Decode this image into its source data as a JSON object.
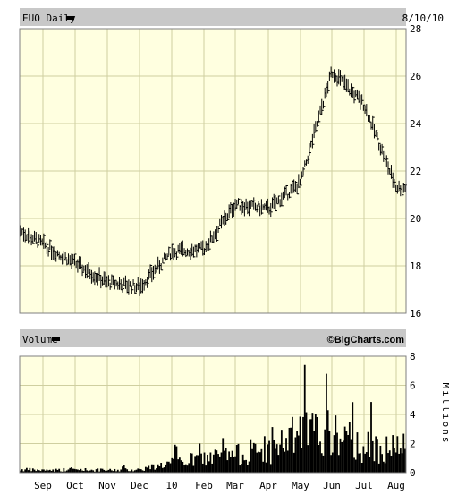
{
  "header": {
    "symbol_label": "EUO Daily",
    "date_label": "8/10/10",
    "volume_label": "Volume",
    "watermark": "©BigCharts.com"
  },
  "colors": {
    "panel_bg": "#ffffe0",
    "header_bg": "#c8c8c8",
    "grid": "#cfcfa0",
    "price_bar": "#000000",
    "volume_bar": "#000000"
  },
  "chart_data": [
    {
      "type": "line",
      "title": "EUO Daily",
      "subtitle": "8/10/10",
      "xlabel": "",
      "ylabel": "",
      "x_tick_labels": [
        "Sep",
        "Oct",
        "Nov",
        "Dec",
        "10",
        "Feb",
        "Mar",
        "Apr",
        "May",
        "Jun",
        "Jul",
        "Aug"
      ],
      "ylim": [
        16,
        28
      ],
      "y_ticks": [
        16,
        18,
        20,
        22,
        24,
        26,
        28
      ],
      "grid": true,
      "series": [
        {
          "x": [
            "Aug",
            "Sep",
            "Oct",
            "Nov",
            "Dec",
            "10",
            "Feb",
            "Mar",
            "Apr",
            "May",
            "Jun",
            "Jul",
            "Aug"
          ],
          "values": [
            19.5,
            18.9,
            18.1,
            17.3,
            17.1,
            18.6,
            18.7,
            20.6,
            20.4,
            21.5,
            26.2,
            24.8,
            21.3
          ]
        }
      ]
    },
    {
      "type": "area",
      "title": "Volume",
      "ylabel": "Millions",
      "ylim": [
        0,
        8
      ],
      "y_ticks": [
        0,
        2,
        4,
        6,
        8
      ],
      "grid": true,
      "series": [
        {
          "x": [
            "Aug",
            "Sep",
            "Oct",
            "Nov",
            "Dec",
            "10",
            "Feb",
            "Mar",
            "Apr",
            "May",
            "Jun",
            "Jul",
            "Aug"
          ],
          "values": [
            0.2,
            0.15,
            0.2,
            0.15,
            0.2,
            0.6,
            0.9,
            1.1,
            1.3,
            2.5,
            2.4,
            1.6,
            1.5
          ]
        }
      ]
    }
  ]
}
